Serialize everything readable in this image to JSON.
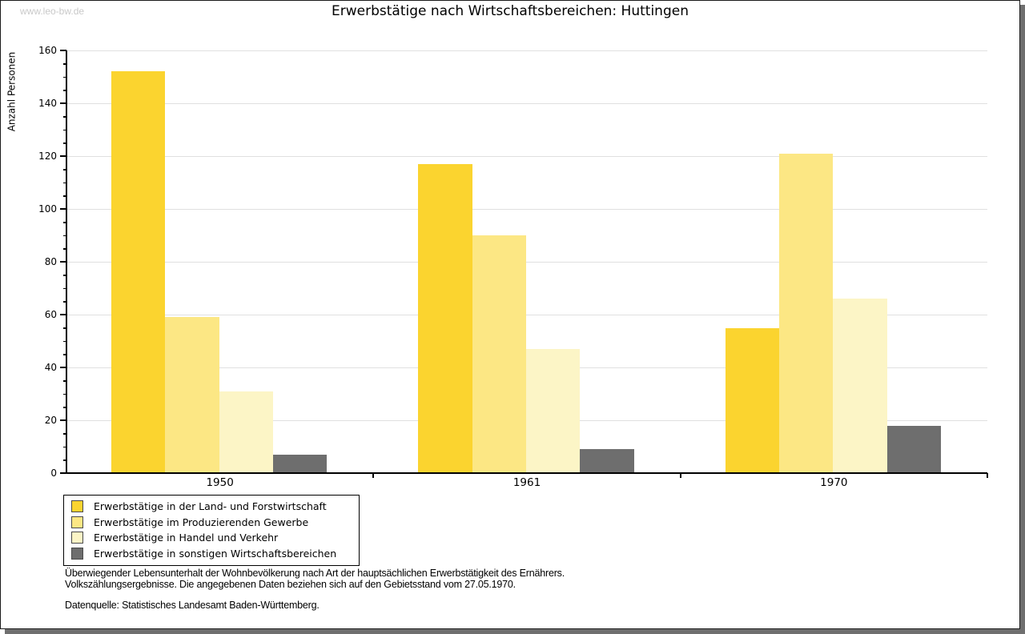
{
  "watermark": "www.leo-bw.de",
  "title": "Erwerbstätige nach Wirtschaftsbereichen: Huttingen",
  "chart_data": {
    "type": "bar",
    "title": "Erwerbstätige nach Wirtschaftsbereichen: Huttingen",
    "ylabel": "Anzahl Personen",
    "xlabel": "",
    "categories": [
      "1950",
      "1961",
      "1970"
    ],
    "series": [
      {
        "name": "Erwerbstätige in der Land- und Forstwirtschaft",
        "color": "#FBD42F",
        "values": [
          152,
          117,
          55
        ]
      },
      {
        "name": "Erwerbstätige im Produzierenden Gewerbe",
        "color": "#FCE784",
        "values": [
          59,
          90,
          121
        ]
      },
      {
        "name": "Erwerbstätige in Handel und Verkehr",
        "color": "#FCF5C6",
        "values": [
          31,
          47,
          66
        ]
      },
      {
        "name": "Erwerbstätige in sonstigen Wirtschaftsbereichen",
        "color": "#6E6E6E",
        "values": [
          7,
          9,
          18
        ]
      }
    ],
    "ylim": [
      0,
      160
    ],
    "yticks": [
      0,
      20,
      40,
      60,
      80,
      100,
      120,
      140,
      160
    ],
    "minor_tick_step": 5,
    "grid": true,
    "legend_position": "bottom-left",
    "grid_color": "#e0e0e0",
    "axis_color": "#000000"
  },
  "footnote": {
    "line1": "Überwiegender Lebensunterhalt der Wohnbevölkerung nach Art der hauptsächlichen Erwerbstätigkeit des Ernährers.",
    "line2": "Volkszählungsergebnisse. Die angegebenen Daten beziehen sich auf den Gebietsstand vom 27.05.1970.",
    "source": "Datenquelle: Statistisches Landesamt Baden-Württemberg."
  }
}
